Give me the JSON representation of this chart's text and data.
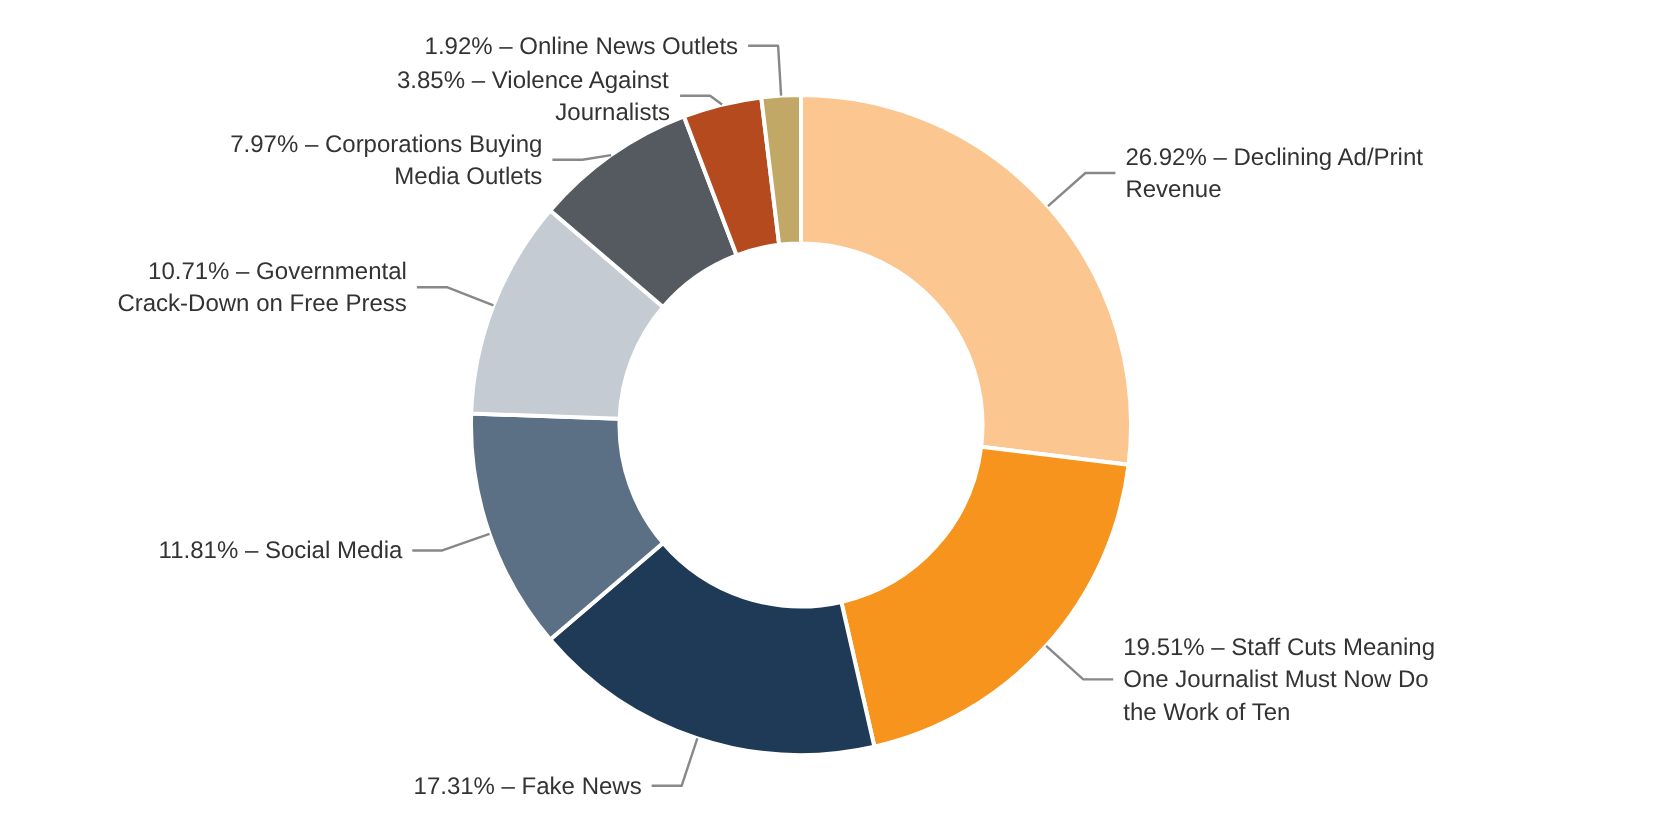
{
  "chart_data": {
    "type": "donut",
    "categories": [
      "Declining Ad/Print Revenue",
      "Staff Cuts Meaning One Journalist Must Now Do the Work of Ten",
      "Fake News",
      "Social Media",
      "Governmental Crack-Down on Free Press",
      "Corporations Buying Media Outlets",
      "Violence Against Journalists",
      "Online News Outlets"
    ],
    "values": [
      26.92,
      19.51,
      17.31,
      11.81,
      10.71,
      7.97,
      3.85,
      1.92
    ],
    "value_labels": [
      "26.92% –",
      "19.51% –",
      "17.31% –",
      "11.81% –",
      "10.71% –",
      "7.97% –",
      "3.85% –",
      "1.92% –"
    ],
    "colors": [
      "#fbc68f",
      "#f7941d",
      "#1f3a56",
      "#5b7085",
      "#c4cbd3",
      "#545a60",
      "#b54a1e",
      "#c2a866"
    ]
  }
}
